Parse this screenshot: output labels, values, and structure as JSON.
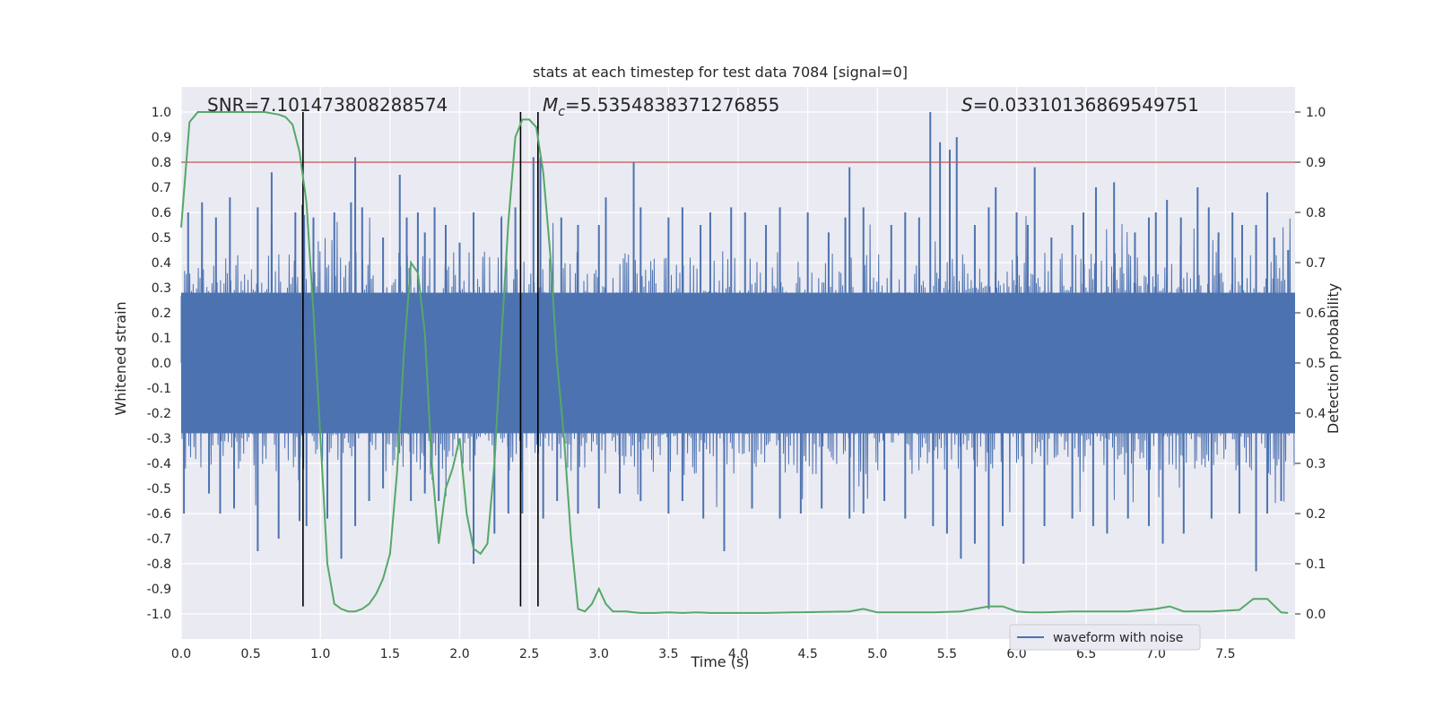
{
  "chart_data": {
    "type": "line",
    "title": "stats at each timestep for test data 7084 [signal=0]",
    "xlabel": "Time (s)",
    "ylabel": "Whitened strain",
    "y2label": "Detection probability",
    "xlim": [
      0.0,
      8.0
    ],
    "ylim": [
      -1.1,
      1.1
    ],
    "y2lim": [
      -0.05,
      1.05
    ],
    "grid": true,
    "x_ticks": [
      "0.0",
      "0.5",
      "1.0",
      "1.5",
      "2.0",
      "2.5",
      "3.0",
      "3.5",
      "4.0",
      "4.5",
      "5.0",
      "5.5",
      "6.0",
      "6.5",
      "7.0",
      "7.5"
    ],
    "y_ticks": [
      "1.0",
      "0.9",
      "0.8",
      "0.7",
      "0.6",
      "0.5",
      "0.4",
      "0.3",
      "0.2",
      "0.1",
      "0.0",
      "-0.1",
      "-0.2",
      "-0.3",
      "-0.4",
      "-0.5",
      "-0.6",
      "-0.7",
      "-0.8",
      "-0.9",
      "-1.0"
    ],
    "y2_ticks": [
      "1.0",
      "0.9",
      "0.8",
      "0.7",
      "0.6",
      "0.5",
      "0.4",
      "0.3",
      "0.2",
      "0.1",
      "0.0"
    ],
    "annotations": {
      "snr": "SNR=7.101473808288574",
      "mc_symbol": "M",
      "mc_sub": "c",
      "mc_value": "=5.5354838371276855",
      "s_symbol": "S",
      "s_value": "=0.03310136869549751"
    },
    "threshold": {
      "y2": 0.9,
      "color": "#c44e52"
    },
    "vlines": [
      0.875,
      2.4375,
      2.5625
    ],
    "legend": {
      "position": "lower-right",
      "entries": [
        {
          "label": "waveform with noise",
          "color": "#4c72b0"
        }
      ]
    },
    "waveform": {
      "name": "waveform with noise",
      "color": "#4c72b0",
      "band": 0.28,
      "peaks_pos": [
        [
          0.05,
          0.6
        ],
        [
          0.15,
          0.64
        ],
        [
          0.25,
          0.58
        ],
        [
          0.35,
          0.66
        ],
        [
          0.55,
          0.62
        ],
        [
          0.65,
          0.55
        ],
        [
          0.65,
          0.76
        ],
        [
          0.82,
          0.6
        ],
        [
          0.87,
          0.63
        ],
        [
          0.95,
          0.58
        ],
        [
          1.1,
          0.6
        ],
        [
          1.22,
          0.64
        ],
        [
          1.25,
          0.82
        ],
        [
          1.3,
          0.62
        ],
        [
          1.45,
          0.5
        ],
        [
          1.57,
          0.75
        ],
        [
          1.62,
          0.58
        ],
        [
          1.7,
          0.6
        ],
        [
          1.75,
          0.52
        ],
        [
          1.82,
          0.62
        ],
        [
          1.9,
          0.55
        ],
        [
          2.0,
          0.48
        ],
        [
          2.1,
          0.6
        ],
        [
          2.3,
          0.58
        ],
        [
          2.4,
          0.62
        ],
        [
          2.53,
          0.82
        ],
        [
          2.58,
          0.82
        ],
        [
          2.73,
          0.58
        ],
        [
          2.85,
          0.55
        ],
        [
          3.0,
          0.55
        ],
        [
          3.05,
          0.66
        ],
        [
          3.25,
          0.8
        ],
        [
          3.3,
          0.62
        ],
        [
          3.5,
          0.58
        ],
        [
          3.6,
          0.62
        ],
        [
          3.73,
          0.55
        ],
        [
          3.8,
          0.6
        ],
        [
          3.95,
          0.62
        ],
        [
          4.05,
          0.6
        ],
        [
          4.2,
          0.55
        ],
        [
          4.3,
          0.62
        ],
        [
          4.5,
          0.6
        ],
        [
          4.65,
          0.52
        ],
        [
          4.77,
          0.58
        ],
        [
          4.8,
          0.78
        ],
        [
          4.9,
          0.62
        ],
        [
          5.1,
          0.55
        ],
        [
          5.2,
          0.6
        ],
        [
          5.3,
          0.58
        ],
        [
          5.38,
          1.0
        ],
        [
          5.45,
          0.88
        ],
        [
          5.52,
          0.85
        ],
        [
          5.57,
          0.9
        ],
        [
          5.7,
          0.55
        ],
        [
          5.8,
          0.62
        ],
        [
          5.85,
          0.7
        ],
        [
          6.0,
          0.6
        ],
        [
          6.08,
          0.55
        ],
        [
          6.13,
          0.78
        ],
        [
          6.25,
          0.5
        ],
        [
          6.4,
          0.55
        ],
        [
          6.48,
          0.6
        ],
        [
          6.57,
          0.7
        ],
        [
          6.7,
          0.72
        ],
        [
          6.85,
          0.52
        ],
        [
          6.95,
          0.58
        ],
        [
          7.0,
          0.6
        ],
        [
          7.08,
          0.65
        ],
        [
          7.18,
          0.58
        ],
        [
          7.3,
          0.7
        ],
        [
          7.38,
          0.62
        ],
        [
          7.45,
          0.52
        ],
        [
          7.55,
          0.6
        ],
        [
          7.62,
          0.55
        ],
        [
          7.72,
          0.55
        ],
        [
          7.8,
          0.68
        ],
        [
          7.85,
          0.5
        ],
        [
          7.95,
          0.45
        ]
      ],
      "peaks_neg": [
        [
          0.02,
          -0.6
        ],
        [
          0.2,
          -0.52
        ],
        [
          0.28,
          -0.6
        ],
        [
          0.38,
          -0.58
        ],
        [
          0.55,
          -0.75
        ],
        [
          0.7,
          -0.7
        ],
        [
          0.85,
          -0.63
        ],
        [
          0.9,
          -0.65
        ],
        [
          1.05,
          -0.62
        ],
        [
          1.15,
          -0.78
        ],
        [
          1.25,
          -0.65
        ],
        [
          1.35,
          -0.55
        ],
        [
          1.45,
          -0.5
        ],
        [
          1.65,
          -0.55
        ],
        [
          1.75,
          -0.52
        ],
        [
          1.85,
          -0.55
        ],
        [
          2.1,
          -0.8
        ],
        [
          2.25,
          -0.68
        ],
        [
          2.35,
          -0.6
        ],
        [
          2.45,
          -0.6
        ],
        [
          2.6,
          -0.62
        ],
        [
          2.7,
          -0.55
        ],
        [
          2.85,
          -0.6
        ],
        [
          3.0,
          -0.58
        ],
        [
          3.15,
          -0.52
        ],
        [
          3.3,
          -0.55
        ],
        [
          3.5,
          -0.6
        ],
        [
          3.6,
          -0.55
        ],
        [
          3.75,
          -0.62
        ],
        [
          3.9,
          -0.75
        ],
        [
          4.1,
          -0.58
        ],
        [
          4.3,
          -0.62
        ],
        [
          4.45,
          -0.6
        ],
        [
          4.6,
          -0.58
        ],
        [
          4.8,
          -0.62
        ],
        [
          4.9,
          -0.6
        ],
        [
          5.05,
          -0.55
        ],
        [
          5.2,
          -0.62
        ],
        [
          5.4,
          -0.65
        ],
        [
          5.5,
          -0.68
        ],
        [
          5.6,
          -0.78
        ],
        [
          5.7,
          -0.72
        ],
        [
          5.8,
          -0.98
        ],
        [
          5.9,
          -0.65
        ],
        [
          6.05,
          -0.8
        ],
        [
          6.2,
          -0.65
        ],
        [
          6.4,
          -0.62
        ],
        [
          6.55,
          -0.65
        ],
        [
          6.65,
          -0.68
        ],
        [
          6.8,
          -0.62
        ],
        [
          6.95,
          -0.65
        ],
        [
          7.05,
          -0.72
        ],
        [
          7.2,
          -0.68
        ],
        [
          7.4,
          -0.62
        ],
        [
          7.6,
          -0.6
        ],
        [
          7.72,
          -0.83
        ],
        [
          7.8,
          -0.6
        ],
        [
          7.9,
          -0.55
        ]
      ]
    },
    "probability": {
      "name": "Detection probability",
      "color": "#55a868",
      "x": [
        0.0,
        0.06,
        0.12,
        0.25,
        0.5,
        0.6,
        0.7,
        0.75,
        0.8,
        0.85,
        0.9,
        0.95,
        1.0,
        1.05,
        1.1,
        1.15,
        1.2,
        1.25,
        1.3,
        1.35,
        1.4,
        1.45,
        1.5,
        1.55,
        1.6,
        1.65,
        1.7,
        1.75,
        1.8,
        1.85,
        1.9,
        1.95,
        2.0,
        2.05,
        2.1,
        2.15,
        2.2,
        2.25,
        2.3,
        2.35,
        2.4,
        2.45,
        2.5,
        2.55,
        2.6,
        2.65,
        2.7,
        2.75,
        2.8,
        2.85,
        2.9,
        2.95,
        3.0,
        3.05,
        3.1,
        3.15,
        3.2,
        3.25,
        3.3,
        3.4,
        3.5,
        3.6,
        3.7,
        3.8,
        3.9,
        4.0,
        4.2,
        4.4,
        4.6,
        4.8,
        4.9,
        5.0,
        5.2,
        5.4,
        5.6,
        5.7,
        5.8,
        5.9,
        6.0,
        6.1,
        6.2,
        6.4,
        6.6,
        6.8,
        7.0,
        7.1,
        7.2,
        7.4,
        7.6,
        7.7,
        7.8,
        7.9,
        7.95
      ],
      "y": [
        0.77,
        0.98,
        1.0,
        1.0,
        1.0,
        1.0,
        0.995,
        0.99,
        0.975,
        0.92,
        0.82,
        0.6,
        0.35,
        0.1,
        0.02,
        0.01,
        0.005,
        0.005,
        0.01,
        0.02,
        0.04,
        0.07,
        0.12,
        0.28,
        0.52,
        0.7,
        0.68,
        0.56,
        0.3,
        0.14,
        0.25,
        0.29,
        0.35,
        0.2,
        0.13,
        0.12,
        0.14,
        0.3,
        0.55,
        0.78,
        0.95,
        0.985,
        0.985,
        0.97,
        0.88,
        0.72,
        0.5,
        0.35,
        0.15,
        0.01,
        0.005,
        0.02,
        0.05,
        0.02,
        0.005,
        0.005,
        0.005,
        0.003,
        0.002,
        0.002,
        0.003,
        0.002,
        0.003,
        0.002,
        0.002,
        0.002,
        0.002,
        0.003,
        0.004,
        0.005,
        0.01,
        0.003,
        0.003,
        0.003,
        0.005,
        0.01,
        0.015,
        0.015,
        0.005,
        0.003,
        0.003,
        0.005,
        0.005,
        0.005,
        0.01,
        0.015,
        0.005,
        0.005,
        0.008,
        0.03,
        0.03,
        0.003,
        0.002
      ]
    }
  }
}
